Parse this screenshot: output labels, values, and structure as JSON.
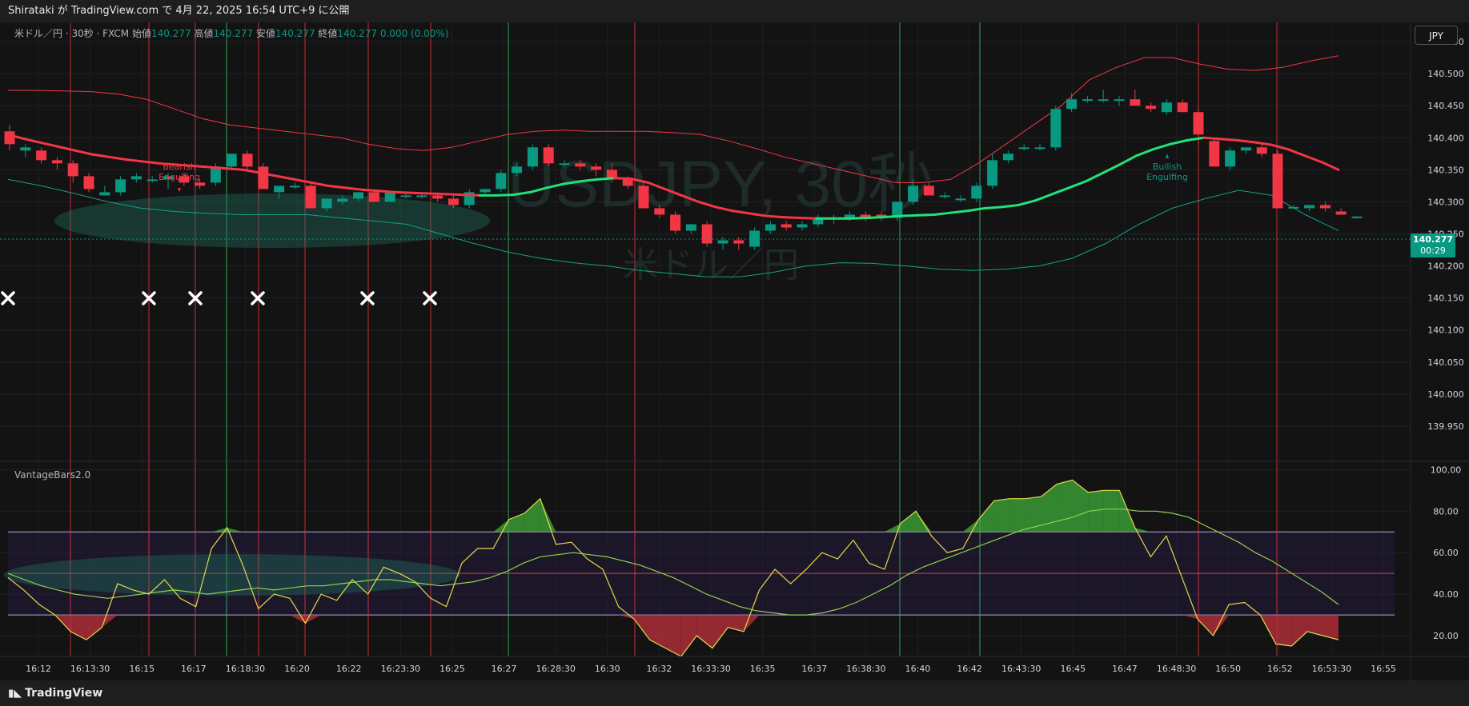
{
  "header": {
    "publish_text": "Shirataki が TradingView.com で 4月 22, 2025 16:54 UTC+9 に公開"
  },
  "legend": {
    "symbol": "米ドル／円 · 30秒 · FXCM",
    "open_label": "始値",
    "open": "140.277",
    "high_label": "高値",
    "high": "140.277",
    "low_label": "安値",
    "low": "140.277",
    "close_label": "終値",
    "close": "140.277",
    "change": "0.000 (0.00%)"
  },
  "currency_button": "JPY",
  "watermark": {
    "line1": "USDJPY, 30秒",
    "line2": "米ドル／円"
  },
  "indicator": {
    "name": "VantageBars2.0"
  },
  "price_badge": {
    "price": "140.277",
    "countdown": "00:29"
  },
  "footer": {
    "brand": "TradingView"
  },
  "colors": {
    "up": "#089981",
    "down": "#f23645",
    "ma_up": "#22e07a",
    "ma_down": "#f23645",
    "band_upper": "#f23645",
    "band_lower": "#16a085",
    "osc_fast": "#e5d84a",
    "osc_slow": "#8fd14f"
  },
  "chart_data": [
    {
      "type": "candlestick",
      "y_axis_ticks": [
        "140.550",
        "140.500",
        "140.450",
        "140.400",
        "140.350",
        "140.300",
        "140.250",
        "140.200",
        "140.150",
        "140.100",
        "140.050",
        "140.000",
        "139.950"
      ],
      "ylim": [
        139.93,
        140.58
      ],
      "x_axis_ticks": [
        "16:12",
        "16:13:30",
        "16:15",
        "16:17",
        "16:18:30",
        "16:20",
        "16:22",
        "16:23:30",
        "16:25",
        "16:27",
        "16:28:30",
        "16:30",
        "16:32",
        "16:33:30",
        "16:35",
        "16:37",
        "16:38:30",
        "16:40",
        "16:42",
        "16:43:30",
        "16:45",
        "16:47",
        "16:48:30",
        "16:50",
        "16:52",
        "16:53:30",
        "16:55"
      ],
      "ohlc": [
        [
          140.41,
          140.42,
          140.38,
          140.39
        ],
        [
          140.38,
          140.39,
          140.37,
          140.385
        ],
        [
          140.38,
          140.385,
          140.36,
          140.365
        ],
        [
          140.365,
          140.37,
          140.35,
          140.36
        ],
        [
          140.36,
          140.365,
          140.33,
          140.34
        ],
        [
          140.34,
          140.345,
          140.315,
          140.32
        ],
        [
          140.31,
          140.325,
          140.31,
          140.315
        ],
        [
          140.315,
          140.34,
          140.31,
          140.335
        ],
        [
          140.335,
          140.345,
          140.33,
          140.34
        ],
        [
          140.335,
          140.34,
          140.33,
          140.335
        ],
        [
          140.335,
          140.345,
          140.32,
          140.34
        ],
        [
          140.34,
          140.345,
          140.325,
          140.33
        ],
        [
          140.33,
          140.335,
          140.32,
          140.325
        ],
        [
          140.33,
          140.36,
          140.325,
          140.355
        ],
        [
          140.355,
          140.375,
          140.35,
          140.375
        ],
        [
          140.375,
          140.38,
          140.35,
          140.355
        ],
        [
          140.355,
          140.36,
          140.32,
          140.32
        ],
        [
          140.315,
          140.325,
          140.305,
          140.325
        ],
        [
          140.325,
          140.33,
          140.32,
          140.325
        ],
        [
          140.325,
          140.33,
          140.29,
          140.29
        ],
        [
          140.29,
          140.305,
          140.285,
          140.305
        ],
        [
          140.3,
          140.31,
          140.295,
          140.305
        ],
        [
          140.305,
          140.315,
          140.3,
          140.315
        ],
        [
          140.315,
          140.32,
          140.3,
          140.3
        ],
        [
          140.3,
          140.315,
          140.3,
          140.315
        ],
        [
          140.31,
          140.315,
          140.305,
          140.31
        ],
        [
          140.31,
          140.315,
          140.305,
          140.31
        ],
        [
          140.31,
          140.315,
          140.3,
          140.305
        ],
        [
          140.305,
          140.31,
          140.29,
          140.295
        ],
        [
          140.295,
          140.32,
          140.29,
          140.315
        ],
        [
          140.315,
          140.32,
          140.31,
          140.32
        ],
        [
          140.32,
          140.35,
          140.315,
          140.345
        ],
        [
          140.345,
          140.36,
          140.34,
          140.355
        ],
        [
          140.355,
          140.39,
          140.35,
          140.385
        ],
        [
          140.385,
          140.39,
          140.355,
          140.36
        ],
        [
          140.36,
          140.365,
          140.355,
          140.36
        ],
        [
          140.36,
          140.365,
          140.35,
          140.355
        ],
        [
          140.355,
          140.36,
          140.34,
          140.35
        ],
        [
          140.35,
          140.36,
          140.33,
          140.335
        ],
        [
          140.335,
          140.34,
          140.32,
          140.325
        ],
        [
          140.325,
          140.33,
          140.29,
          140.29
        ],
        [
          140.29,
          140.295,
          140.275,
          140.28
        ],
        [
          140.28,
          140.285,
          140.25,
          140.255
        ],
        [
          140.255,
          140.265,
          140.25,
          140.265
        ],
        [
          140.265,
          140.27,
          140.23,
          140.235
        ],
        [
          140.235,
          140.245,
          140.225,
          140.24
        ],
        [
          140.24,
          140.245,
          140.225,
          140.235
        ],
        [
          140.23,
          140.26,
          140.225,
          140.255
        ],
        [
          140.255,
          140.27,
          140.25,
          140.265
        ],
        [
          140.265,
          140.27,
          140.255,
          140.26
        ],
        [
          140.26,
          140.27,
          140.255,
          140.265
        ],
        [
          140.265,
          140.28,
          140.26,
          140.275
        ],
        [
          140.275,
          140.28,
          140.265,
          140.275
        ],
        [
          140.275,
          140.285,
          140.27,
          140.28
        ],
        [
          140.28,
          140.285,
          140.27,
          140.275
        ],
        [
          140.28,
          140.285,
          140.27,
          140.275
        ],
        [
          140.275,
          140.3,
          140.27,
          140.3
        ],
        [
          140.3,
          140.335,
          140.295,
          140.325
        ],
        [
          140.325,
          140.33,
          140.31,
          140.31
        ],
        [
          140.31,
          140.315,
          140.305,
          140.31
        ],
        [
          140.305,
          140.31,
          140.3,
          140.305
        ],
        [
          140.305,
          140.33,
          140.3,
          140.325
        ],
        [
          140.325,
          140.375,
          140.32,
          140.365
        ],
        [
          140.365,
          140.38,
          140.36,
          140.375
        ],
        [
          140.385,
          140.39,
          140.38,
          140.385
        ],
        [
          140.385,
          140.39,
          140.38,
          140.385
        ],
        [
          140.385,
          140.45,
          140.38,
          140.445
        ],
        [
          140.445,
          140.47,
          140.44,
          140.46
        ],
        [
          140.46,
          140.465,
          140.455,
          140.46
        ],
        [
          140.46,
          140.475,
          140.455,
          140.46
        ],
        [
          140.46,
          140.465,
          140.45,
          140.46
        ],
        [
          140.46,
          140.475,
          140.45,
          140.45
        ],
        [
          140.45,
          140.455,
          140.44,
          140.445
        ],
        [
          140.44,
          140.46,
          140.435,
          140.455
        ],
        [
          140.455,
          140.46,
          140.44,
          140.44
        ],
        [
          140.44,
          140.445,
          140.39,
          140.405
        ],
        [
          140.395,
          140.4,
          140.355,
          140.355
        ],
        [
          140.355,
          140.385,
          140.35,
          140.38
        ],
        [
          140.38,
          140.385,
          140.375,
          140.385
        ],
        [
          140.385,
          140.39,
          140.37,
          140.375
        ],
        [
          140.375,
          140.38,
          140.29,
          140.29
        ],
        [
          140.29,
          140.295,
          140.29,
          140.292
        ],
        [
          140.29,
          140.295,
          140.285,
          140.295
        ],
        [
          140.295,
          140.3,
          140.285,
          140.29
        ],
        [
          140.285,
          140.29,
          140.28,
          140.28
        ],
        [
          140.277,
          140.278,
          140.276,
          140.277
        ]
      ],
      "ma": [
        140.405,
        140.398,
        140.392,
        140.386,
        140.38,
        140.374,
        140.37,
        140.366,
        140.363,
        140.36,
        140.358,
        140.356,
        140.354,
        140.352,
        140.35,
        140.345,
        140.34,
        140.335,
        140.33,
        140.325,
        140.322,
        140.319,
        140.317,
        140.315,
        140.314,
        140.313,
        140.312,
        140.311,
        140.31,
        140.31,
        140.311,
        140.315,
        140.322,
        140.328,
        140.332,
        140.335,
        140.337,
        140.336,
        140.33,
        140.32,
        140.31,
        140.3,
        140.292,
        140.286,
        140.282,
        140.278,
        140.276,
        140.275,
        140.274,
        140.274,
        140.274,
        140.275,
        140.276,
        140.278,
        140.279,
        140.28,
        140.283,
        140.286,
        140.29,
        140.292,
        140.295,
        140.302,
        140.312,
        140.322,
        140.332,
        140.345,
        140.358,
        140.372,
        140.382,
        140.39,
        140.396,
        140.4,
        140.398,
        140.396,
        140.393,
        140.389,
        140.382,
        140.372,
        140.362,
        140.35
      ],
      "band_upper": [
        140.474,
        140.474,
        140.473,
        140.472,
        140.468,
        140.46,
        140.445,
        140.43,
        140.42,
        140.415,
        140.41,
        140.405,
        140.4,
        140.39,
        140.383,
        140.38,
        140.385,
        140.395,
        140.405,
        140.41,
        140.412,
        140.41,
        140.41,
        140.41,
        140.408,
        140.405,
        140.395,
        140.383,
        140.37,
        140.36,
        140.35,
        140.34,
        140.33,
        140.33,
        140.335,
        140.36,
        140.39,
        140.42,
        140.45,
        140.49,
        140.51,
        140.525,
        140.525,
        140.515,
        140.507,
        140.505,
        140.51,
        140.52,
        140.528
      ],
      "band_lower": [
        140.335,
        140.325,
        140.313,
        140.3,
        140.29,
        140.285,
        140.282,
        140.28,
        140.28,
        140.28,
        140.275,
        140.27,
        140.265,
        140.25,
        140.235,
        140.222,
        140.212,
        140.205,
        140.2,
        140.193,
        140.188,
        140.183,
        140.183,
        140.19,
        140.2,
        140.205,
        140.204,
        140.2,
        140.195,
        140.193,
        140.195,
        140.2,
        140.212,
        140.235,
        140.265,
        140.29,
        140.305,
        140.318,
        140.31,
        140.28,
        140.255
      ],
      "annotations": [
        "Bearish Engulfing",
        "Bullish Engulfing"
      ]
    },
    {
      "type": "line",
      "title": "VantageBars2.0",
      "y_axis_ticks": [
        "100.00",
        "80.00",
        "60.00",
        "40.00",
        "20.00"
      ],
      "ylim": [
        10,
        104
      ],
      "levels": [
        70,
        50,
        30
      ],
      "series": [
        {
          "values": [
            48,
            42,
            35,
            30,
            22,
            18,
            24,
            45,
            42,
            40,
            47,
            38,
            34,
            62,
            72,
            54,
            33,
            40,
            38,
            26,
            40,
            37,
            47,
            40,
            53,
            50,
            46,
            38,
            34,
            55,
            62,
            62,
            76,
            79,
            86,
            64,
            65,
            57,
            52,
            34,
            28,
            18,
            14,
            10,
            20,
            14,
            24,
            22,
            42,
            52,
            45,
            52,
            60,
            57,
            66,
            55,
            52,
            74,
            80,
            68,
            60,
            62,
            76,
            85,
            86,
            86,
            87,
            93,
            95,
            89,
            90,
            90,
            72,
            58,
            68,
            48,
            28,
            20,
            35,
            36,
            30,
            16,
            15,
            22,
            20,
            18
          ]
        },
        {
          "values": [
            50,
            47,
            44,
            42,
            40,
            39,
            38,
            39,
            40,
            41,
            42,
            41,
            40,
            41,
            42,
            43,
            42,
            43,
            44,
            44,
            45,
            46,
            47,
            47,
            46,
            45,
            44,
            45,
            46,
            48,
            51,
            55,
            58,
            59,
            60,
            59,
            58,
            56,
            54,
            51,
            48,
            44,
            40,
            37,
            34,
            32,
            31,
            30,
            30,
            31,
            33,
            36,
            40,
            44,
            49,
            53,
            56,
            59,
            62,
            65,
            68,
            71,
            73,
            75,
            77,
            80,
            81,
            81,
            80,
            80,
            79,
            77,
            73,
            69,
            65,
            60,
            56,
            51,
            46,
            41,
            35
          ]
        }
      ]
    }
  ]
}
